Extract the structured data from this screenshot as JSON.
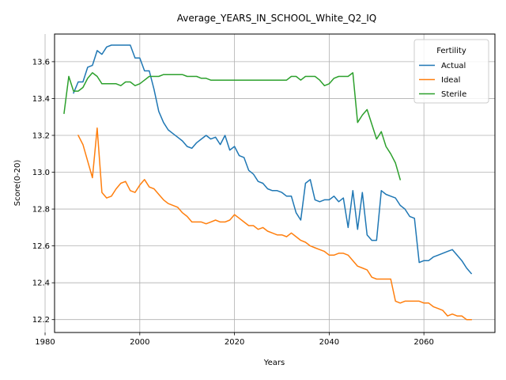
{
  "chart_data": {
    "type": "line",
    "title": "Average_YEARS_IN_SCHOOL_White_Q2_IQ",
    "xlabel": "Years",
    "ylabel": "Score(0-20)",
    "xlim": [
      1982,
      2075
    ],
    "ylim": [
      12.13,
      13.75
    ],
    "xticks": [
      1980,
      2000,
      2020,
      2040,
      2060
    ],
    "yticks": [
      12.2,
      12.4,
      12.6,
      12.8,
      13.0,
      13.2,
      13.4,
      13.6
    ],
    "ytick_labels": [
      "12.2",
      "12.4",
      "12.6",
      "12.8",
      "13.0",
      "13.2",
      "13.4",
      "13.6"
    ],
    "grid": true,
    "legend": {
      "title": "Fertility",
      "position": "top-right"
    },
    "series": [
      {
        "name": "Actual",
        "color": "#1f77b4",
        "x": [
          1986,
          1987,
          1988,
          1989,
          1990,
          1991,
          1992,
          1993,
          1994,
          1995,
          1996,
          1997,
          1998,
          1999,
          2000,
          2001,
          2002,
          2003,
          2004,
          2005,
          2006,
          2007,
          2008,
          2009,
          2010,
          2011,
          2012,
          2013,
          2014,
          2015,
          2016,
          2017,
          2018,
          2019,
          2020,
          2021,
          2022,
          2023,
          2024,
          2025,
          2026,
          2027,
          2028,
          2029,
          2030,
          2031,
          2032,
          2033,
          2034,
          2035,
          2036,
          2037,
          2038,
          2039,
          2040,
          2041,
          2042,
          2043,
          2044,
          2045,
          2046,
          2047,
          2048,
          2049,
          2050,
          2051,
          2052,
          2053,
          2054,
          2055,
          2056,
          2057,
          2058,
          2059,
          2060,
          2061,
          2062,
          2063,
          2064,
          2065,
          2066,
          2067,
          2068,
          2069,
          2070
        ],
        "values": [
          13.43,
          13.49,
          13.49,
          13.57,
          13.58,
          13.66,
          13.64,
          13.68,
          13.69,
          13.69,
          13.69,
          13.69,
          13.69,
          13.62,
          13.62,
          13.55,
          13.55,
          13.45,
          13.33,
          13.27,
          13.23,
          13.21,
          13.19,
          13.17,
          13.14,
          13.13,
          13.16,
          13.18,
          13.2,
          13.18,
          13.19,
          13.15,
          13.2,
          13.12,
          13.14,
          13.09,
          13.08,
          13.01,
          12.99,
          12.95,
          12.94,
          12.91,
          12.9,
          12.9,
          12.89,
          12.87,
          12.87,
          12.78,
          12.74,
          12.94,
          12.96,
          12.85,
          12.84,
          12.85,
          12.85,
          12.87,
          12.84,
          12.86,
          12.7,
          12.9,
          12.69,
          12.89,
          12.66,
          12.63,
          12.63,
          12.9,
          12.88,
          12.87,
          12.86,
          12.82,
          12.8,
          12.76,
          12.75,
          12.51,
          12.52,
          12.52,
          12.54,
          12.55,
          12.56,
          12.57,
          12.58,
          12.55,
          12.52,
          12.48,
          12.45
        ]
      },
      {
        "name": "Ideal",
        "color": "#ff7f0e",
        "x": [
          1987,
          1988,
          1989,
          1990,
          1991,
          1992,
          1993,
          1994,
          1995,
          1996,
          1997,
          1998,
          1999,
          2000,
          2001,
          2002,
          2003,
          2004,
          2005,
          2006,
          2007,
          2008,
          2009,
          2010,
          2011,
          2012,
          2013,
          2014,
          2015,
          2016,
          2017,
          2018,
          2019,
          2020,
          2021,
          2022,
          2023,
          2024,
          2025,
          2026,
          2027,
          2028,
          2029,
          2030,
          2031,
          2032,
          2033,
          2034,
          2035,
          2036,
          2037,
          2038,
          2039,
          2040,
          2041,
          2042,
          2043,
          2044,
          2045,
          2046,
          2047,
          2048,
          2049,
          2050,
          2051,
          2052,
          2053,
          2054,
          2055,
          2056,
          2057,
          2058,
          2059,
          2060,
          2061,
          2062,
          2063,
          2064,
          2065,
          2066,
          2067,
          2068,
          2069,
          2070
        ],
        "values": [
          13.2,
          13.15,
          13.06,
          12.97,
          13.24,
          12.89,
          12.86,
          12.87,
          12.91,
          12.94,
          12.95,
          12.9,
          12.89,
          12.93,
          12.96,
          12.92,
          12.91,
          12.88,
          12.85,
          12.83,
          12.82,
          12.81,
          12.78,
          12.76,
          12.73,
          12.73,
          12.73,
          12.72,
          12.73,
          12.74,
          12.73,
          12.73,
          12.74,
          12.77,
          12.75,
          12.73,
          12.71,
          12.71,
          12.69,
          12.7,
          12.68,
          12.67,
          12.66,
          12.66,
          12.65,
          12.67,
          12.65,
          12.63,
          12.62,
          12.6,
          12.59,
          12.58,
          12.57,
          12.55,
          12.55,
          12.56,
          12.56,
          12.55,
          12.52,
          12.49,
          12.48,
          12.47,
          12.43,
          12.42,
          12.42,
          12.42,
          12.42,
          12.3,
          12.29,
          12.3,
          12.3,
          12.3,
          12.3,
          12.29,
          12.29,
          12.27,
          12.26,
          12.25,
          12.22,
          12.23,
          12.22,
          12.22,
          12.2,
          12.2
        ]
      },
      {
        "name": "Sterile",
        "color": "#2ca02c",
        "x": [
          1984,
          1985,
          1986,
          1987,
          1988,
          1989,
          1990,
          1991,
          1992,
          1993,
          1994,
          1995,
          1996,
          1997,
          1998,
          1999,
          2000,
          2001,
          2002,
          2003,
          2004,
          2005,
          2006,
          2007,
          2008,
          2009,
          2010,
          2011,
          2012,
          2013,
          2014,
          2015,
          2016,
          2017,
          2018,
          2019,
          2020,
          2021,
          2022,
          2023,
          2024,
          2025,
          2026,
          2027,
          2028,
          2029,
          2030,
          2031,
          2032,
          2033,
          2034,
          2035,
          2036,
          2037,
          2038,
          2039,
          2040,
          2041,
          2042,
          2043,
          2044,
          2045,
          2046,
          2047,
          2048,
          2049,
          2050,
          2051,
          2052,
          2053,
          2054,
          2055
        ],
        "values": [
          13.32,
          13.52,
          13.44,
          13.44,
          13.46,
          13.51,
          13.54,
          13.52,
          13.48,
          13.48,
          13.48,
          13.48,
          13.47,
          13.49,
          13.49,
          13.47,
          13.48,
          13.5,
          13.52,
          13.52,
          13.52,
          13.53,
          13.53,
          13.53,
          13.53,
          13.53,
          13.52,
          13.52,
          13.52,
          13.51,
          13.51,
          13.5,
          13.5,
          13.5,
          13.5,
          13.5,
          13.5,
          13.5,
          13.5,
          13.5,
          13.5,
          13.5,
          13.5,
          13.5,
          13.5,
          13.5,
          13.5,
          13.5,
          13.52,
          13.52,
          13.5,
          13.52,
          13.52,
          13.52,
          13.5,
          13.47,
          13.48,
          13.51,
          13.52,
          13.52,
          13.52,
          13.54,
          13.27,
          13.31,
          13.34,
          13.26,
          13.18,
          13.22,
          13.14,
          13.1,
          13.05,
          12.96
        ]
      }
    ]
  }
}
